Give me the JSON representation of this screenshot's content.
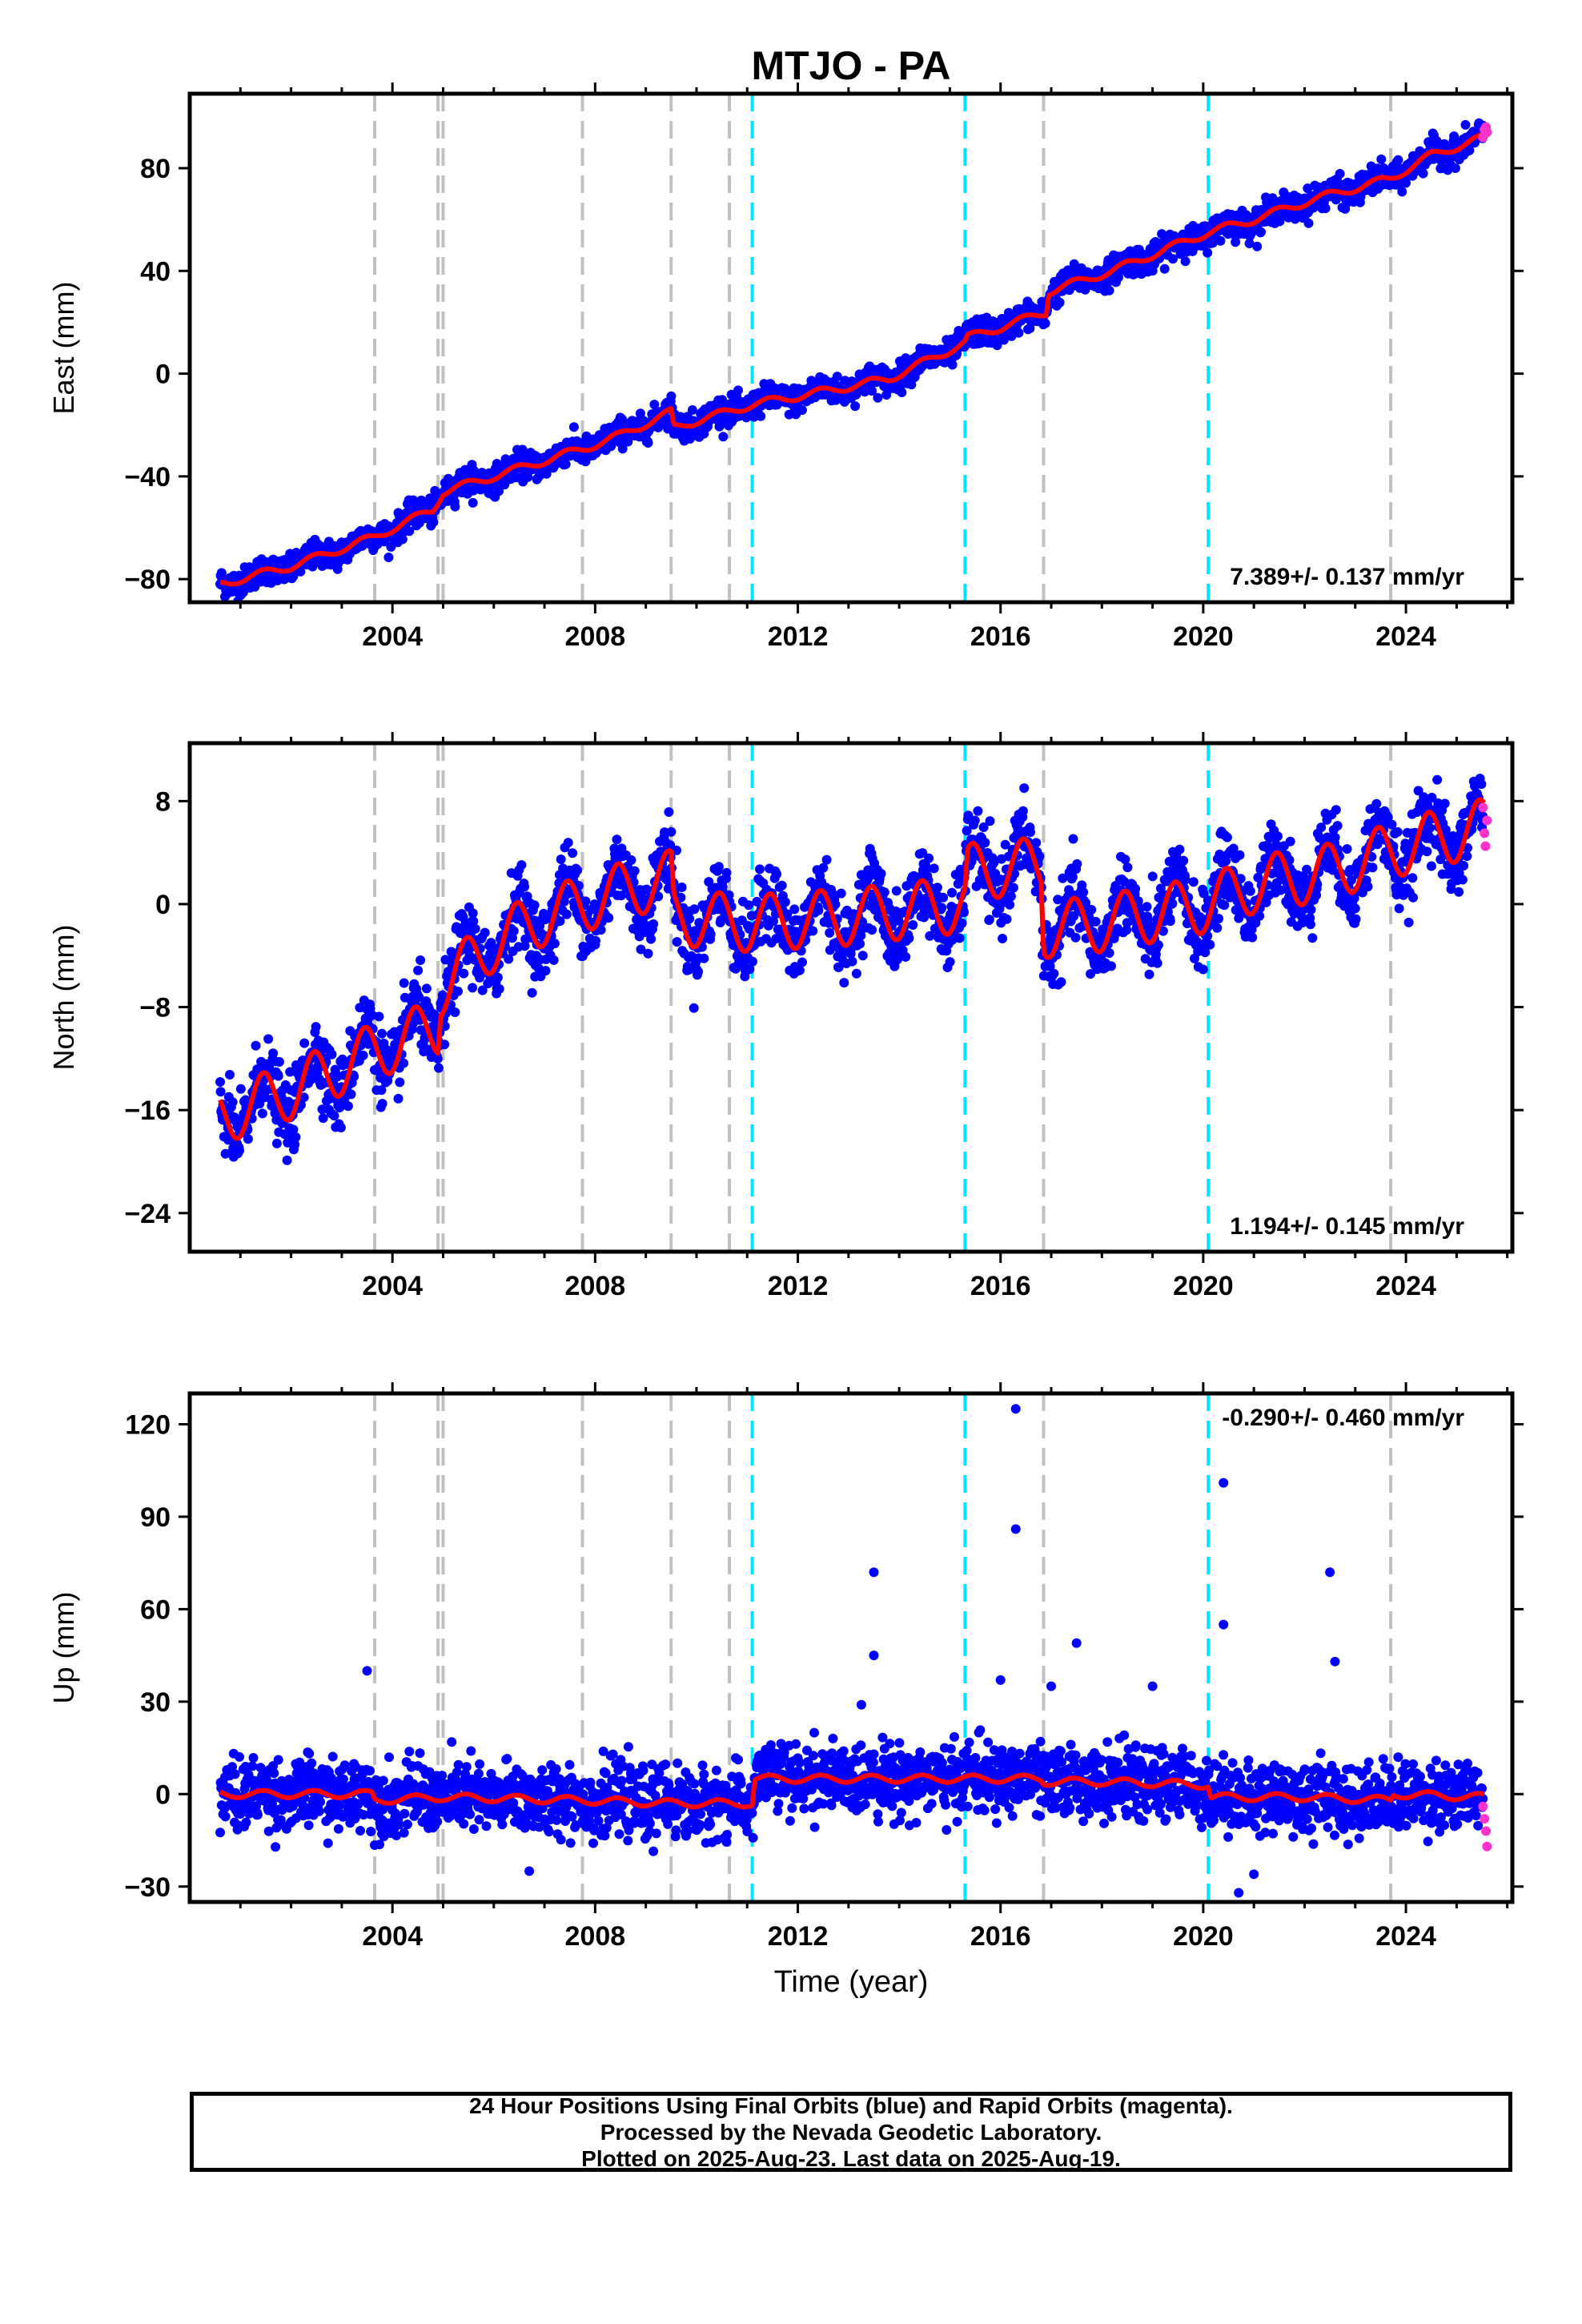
{
  "chart_data": [
    {
      "type": "scatter",
      "title": "MTJO - PA",
      "xlabel": "",
      "ylabel": "East (mm)",
      "xlim": [
        2000.0,
        2026.1
      ],
      "ylim": [
        -89,
        109
      ],
      "x_ticks": [
        2004,
        2008,
        2012,
        2016,
        2020,
        2024
      ],
      "x_tick_labels": [
        "2004",
        "2008",
        "2012",
        "2016",
        "2020",
        "2024"
      ],
      "y_ticks": [
        -80,
        -40,
        0,
        40,
        80
      ],
      "y_tick_labels": [
        "−80",
        "−40",
        "0",
        "40",
        "80"
      ],
      "rate_text": "7.389+/- 0.137 mm/yr",
      "series": [
        {
          "name": "Final Orbits (blue)",
          "color": "#0000ff",
          "trend_points": [
            [
              2000.6,
              -82
            ],
            [
              2002.0,
              -75
            ],
            [
              2003.6,
              -64
            ],
            [
              2004.8,
              -53
            ],
            [
              2005.0,
              -46
            ],
            [
              2006.0,
              -40
            ],
            [
              2007.8,
              -29
            ],
            [
              2008.5,
              -24
            ],
            [
              2009.5,
              -15
            ],
            [
              2009.55,
              -21
            ],
            [
              2010.6,
              -15
            ],
            [
              2011.1,
              -12
            ],
            [
              2012.5,
              -7
            ],
            [
              2013.8,
              -2
            ],
            [
              2015.3,
              12
            ],
            [
              2015.35,
              14
            ],
            [
              2016.0,
              18
            ],
            [
              2016.9,
              24
            ],
            [
              2016.95,
              32
            ],
            [
              2018.2,
              40
            ],
            [
              2020.1,
              55
            ],
            [
              2021.0,
              60
            ],
            [
              2022.2,
              68
            ],
            [
              2023.7,
              76
            ],
            [
              2024.5,
              85
            ],
            [
              2025.55,
              92
            ]
          ],
          "scatter_sigma": 2.6
        },
        {
          "name": "Rapid Orbits (magenta)",
          "color": "#ff33cc",
          "points": [
            [
              2025.52,
              92
            ],
            [
              2025.55,
              95
            ],
            [
              2025.58,
              96
            ],
            [
              2025.6,
              94
            ]
          ]
        }
      ],
      "model": {
        "name": "trajectory model",
        "color": "#ff0000"
      },
      "offsets_equipment": [
        2003.65,
        2004.9,
        2005.0,
        2007.75,
        2009.5,
        2010.65
      ],
      "offsets_earthquake": [
        2011.1,
        2015.3,
        2020.1
      ],
      "offsets_other": [
        2016.85,
        2023.7
      ],
      "offset_colors": {
        "equipment": "#c0c0c0",
        "earthquake": "#00e5ff",
        "other": "#c0c0c0"
      },
      "grid": false,
      "legend": "none"
    },
    {
      "type": "scatter",
      "title": "",
      "xlabel": "",
      "ylabel": "North (mm)",
      "xlim": [
        2000.0,
        2026.1
      ],
      "ylim": [
        -27,
        12.5
      ],
      "x_ticks": [
        2004,
        2008,
        2012,
        2016,
        2020,
        2024
      ],
      "x_tick_labels": [
        "2004",
        "2008",
        "2012",
        "2016",
        "2020",
        "2024"
      ],
      "y_ticks": [
        -24,
        -16,
        -8,
        0,
        8
      ],
      "y_tick_labels": [
        "−24",
        "−16",
        "−8",
        "0",
        "8"
      ],
      "rate_text": "1.194+/- 0.145 mm/yr",
      "series": [
        {
          "name": "Final Orbits (blue)",
          "color": "#0000ff",
          "trend_points": [
            [
              2000.6,
              -16.5
            ],
            [
              2002.0,
              -14.5
            ],
            [
              2003.6,
              -11.5
            ],
            [
              2004.9,
              -9.5
            ],
            [
              2004.95,
              -6.5
            ],
            [
              2006.0,
              -3
            ],
            [
              2007.0,
              -1
            ],
            [
              2008.5,
              1
            ],
            [
              2009.5,
              2
            ],
            [
              2009.55,
              -1
            ],
            [
              2011.0,
              -1.5
            ],
            [
              2013.0,
              -1
            ],
            [
              2015.3,
              0
            ],
            [
              2015.35,
              2.5
            ],
            [
              2016.8,
              3
            ],
            [
              2016.85,
              -2
            ],
            [
              2018.0,
              -1.5
            ],
            [
              2020.1,
              0
            ],
            [
              2021.0,
              1.5
            ],
            [
              2022.5,
              2.5
            ],
            [
              2024.0,
              4.5
            ],
            [
              2025.55,
              6
            ]
          ],
          "scatter_sigma": 1.4
        },
        {
          "name": "Rapid Orbits (magenta)",
          "color": "#ff33cc",
          "points": [
            [
              2025.52,
              7.5
            ],
            [
              2025.55,
              5.5
            ],
            [
              2025.57,
              4.5
            ],
            [
              2025.6,
              6.5
            ]
          ]
        }
      ],
      "model": {
        "name": "trajectory model",
        "color": "#ff0000"
      },
      "offsets_equipment": [
        2003.65,
        2004.9,
        2005.0,
        2007.75,
        2009.5,
        2010.65
      ],
      "offsets_earthquake": [
        2011.1,
        2015.3,
        2020.1
      ],
      "offsets_other": [
        2016.85,
        2023.7
      ],
      "offset_colors": {
        "equipment": "#c0c0c0",
        "earthquake": "#00e5ff",
        "other": "#c0c0c0"
      },
      "grid": false,
      "legend": "none"
    },
    {
      "type": "scatter",
      "title": "",
      "xlabel": "Time (year)",
      "ylabel": "Up (mm)",
      "xlim": [
        2000.0,
        2026.1
      ],
      "ylim": [
        -35,
        130
      ],
      "x_ticks": [
        2004,
        2008,
        2012,
        2016,
        2020,
        2024
      ],
      "x_tick_labels": [
        "2004",
        "2008",
        "2012",
        "2016",
        "2020",
        "2024"
      ],
      "y_ticks": [
        -30,
        0,
        30,
        60,
        90,
        120
      ],
      "y_tick_labels": [
        "−30",
        "0",
        "30",
        "60",
        "90",
        "120"
      ],
      "rate_text": "-0.290+/- 0.460 mm/yr",
      "series": [
        {
          "name": "Final Orbits (blue)",
          "color": "#0000ff",
          "trend_points": [
            [
              2000.6,
              0
            ],
            [
              2003.6,
              0
            ],
            [
              2003.65,
              -2
            ],
            [
              2005.0,
              -1
            ],
            [
              2007.75,
              -2
            ],
            [
              2009.5,
              -3
            ],
            [
              2010.9,
              -3
            ],
            [
              2011.1,
              -3
            ],
            [
              2011.15,
              5
            ],
            [
              2013.0,
              5
            ],
            [
              2015.3,
              5
            ],
            [
              2016.8,
              5
            ],
            [
              2016.85,
              4
            ],
            [
              2018.0,
              4
            ],
            [
              2020.1,
              3
            ],
            [
              2020.15,
              -1
            ],
            [
              2022.0,
              -1
            ],
            [
              2023.7,
              -2
            ],
            [
              2023.75,
              0
            ],
            [
              2025.55,
              -1
            ]
          ],
          "scatter_sigma": 5.5
        },
        {
          "name": "Rapid Orbits (magenta)",
          "color": "#ff33cc",
          "points": [
            [
              2025.52,
              -4
            ],
            [
              2025.55,
              -8
            ],
            [
              2025.58,
              -12
            ],
            [
              2025.6,
              -17
            ]
          ]
        }
      ],
      "outliers": [
        [
          2003.5,
          40
        ],
        [
          2013.5,
          72
        ],
        [
          2013.5,
          45
        ],
        [
          2016.3,
          125
        ],
        [
          2016.3,
          86
        ],
        [
          2017.5,
          49
        ],
        [
          2020.4,
          101
        ],
        [
          2020.4,
          55
        ],
        [
          2022.5,
          72
        ],
        [
          2022.6,
          43
        ],
        [
          2017.0,
          35
        ],
        [
          2019.0,
          35
        ],
        [
          2006.7,
          -25
        ],
        [
          2021.0,
          -26
        ],
        [
          2020.7,
          -32
        ],
        [
          2016.0,
          37
        ]
      ],
      "model": {
        "name": "trajectory model",
        "color": "#ff0000"
      },
      "offsets_equipment": [
        2003.65,
        2004.9,
        2005.0,
        2007.75,
        2009.5,
        2010.65
      ],
      "offsets_earthquake": [
        2011.1,
        2015.3,
        2020.1
      ],
      "offsets_other": [
        2016.85,
        2023.7
      ],
      "offset_colors": {
        "equipment": "#c0c0c0",
        "earthquake": "#00e5ff",
        "other": "#c0c0c0"
      },
      "grid": false,
      "legend": "none"
    }
  ],
  "footer": {
    "line1": "24 Hour Positions Using Final Orbits (blue) and Rapid Orbits (magenta).",
    "line2": "Processed by the Nevada Geodetic Laboratory.",
    "line3": "Plotted on 2025-Aug-23. Last data on 2025-Aug-19."
  }
}
